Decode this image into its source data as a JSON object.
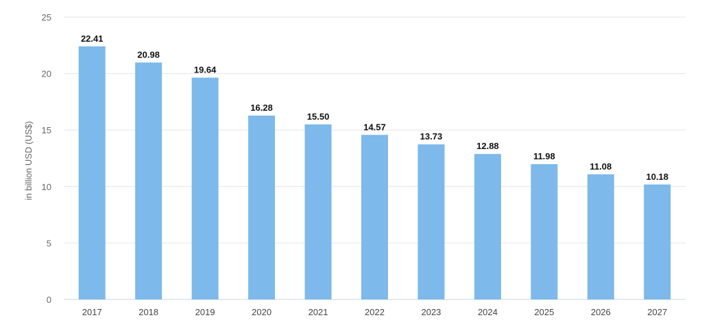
{
  "chart_data": {
    "type": "bar",
    "categories": [
      "2017",
      "2018",
      "2019",
      "2020",
      "2021",
      "2022",
      "2023",
      "2024",
      "2025",
      "2026",
      "2027"
    ],
    "values": [
      22.41,
      20.98,
      19.64,
      16.28,
      15.5,
      14.57,
      13.73,
      12.88,
      11.98,
      11.08,
      10.18
    ],
    "data_labels": [
      "22.41",
      "20.98",
      "19.64",
      "16.28",
      "15.50",
      "14.57",
      "13.73",
      "12.88",
      "11.98",
      "11.08",
      "10.18"
    ],
    "ylabel": "in billion USD (US$)",
    "yticks": [
      "0",
      "5",
      "10",
      "15",
      "20",
      "25"
    ],
    "ylim": [
      0,
      25
    ],
    "grid": true,
    "bar_color": "#7db9ea",
    "grid_color": "#e6e6e6"
  }
}
